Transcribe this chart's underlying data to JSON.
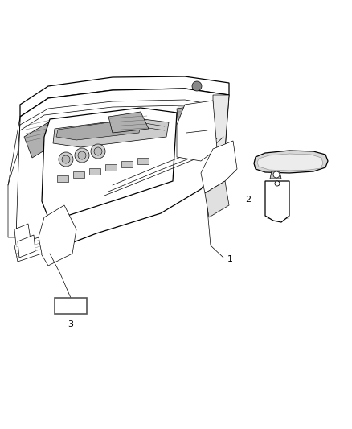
{
  "background_color": "#ffffff",
  "line_color": "#000000",
  "gray_fill": "#b0b0b0",
  "light_gray": "#d8d8d8",
  "label_1": "1",
  "label_2": "2",
  "label_3": "3",
  "figsize": [
    4.38,
    5.33
  ],
  "dpi": 100
}
